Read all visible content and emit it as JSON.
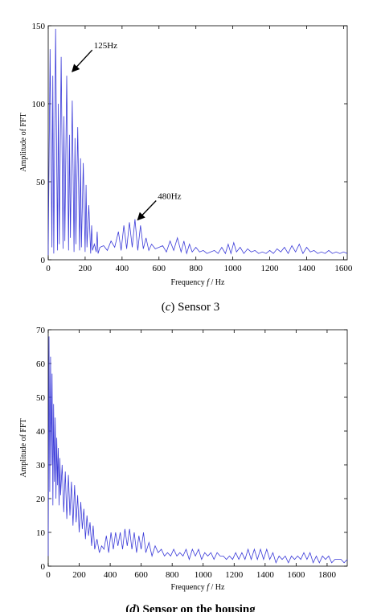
{
  "chart_data": [
    {
      "type": "line",
      "xlabel_prefix": "Frequency ",
      "xlabel_var": "f",
      "xlabel_suffix": " / Hz",
      "ylabel": "Amplitude of FFT",
      "xlim": [
        0,
        1620
      ],
      "ylim": [
        0,
        150
      ],
      "xticks": [
        0,
        200,
        400,
        600,
        800,
        1000,
        1200,
        1400,
        1600
      ],
      "yticks": [
        0,
        50,
        100,
        150
      ],
      "grid": false,
      "line_color": "#3b3bd9",
      "annotations": [
        {
          "text": "125Hz",
          "x": 125,
          "y": 120
        },
        {
          "text": "480Hz",
          "x": 480,
          "y": 25
        }
      ],
      "caption_label": "c",
      "caption_text": "Sensor 3",
      "series": [
        {
          "x": [
            0,
            10,
            20,
            25,
            30,
            40,
            50,
            55,
            60,
            70,
            80,
            85,
            90,
            100,
            110,
            115,
            120,
            130,
            140,
            145,
            150,
            160,
            170,
            175,
            180,
            190,
            200,
            205,
            210,
            220,
            230,
            235,
            240,
            250,
            260,
            265,
            270,
            280,
            300,
            320,
            340,
            360,
            380,
            395,
            410,
            425,
            440,
            455,
            470,
            485,
            500,
            515,
            530,
            545,
            560,
            580,
            600,
            620,
            640,
            660,
            680,
            700,
            720,
            735,
            750,
            765,
            780,
            800,
            820,
            840,
            860,
            880,
            900,
            920,
            940,
            960,
            975,
            990,
            1005,
            1020,
            1040,
            1060,
            1080,
            1100,
            1120,
            1140,
            1160,
            1180,
            1200,
            1220,
            1240,
            1260,
            1280,
            1300,
            1320,
            1340,
            1360,
            1380,
            1400,
            1420,
            1440,
            1460,
            1480,
            1500,
            1520,
            1540,
            1560,
            1580,
            1600,
            1620
          ],
          "y": [
            3,
            135,
            8,
            118,
            4,
            148,
            6,
            100,
            10,
            130,
            7,
            92,
            12,
            118,
            6,
            80,
            14,
            102,
            5,
            78,
            10,
            85,
            6,
            65,
            8,
            62,
            5,
            48,
            8,
            35,
            4,
            22,
            6,
            10,
            5,
            18,
            4,
            8,
            9,
            6,
            12,
            8,
            18,
            6,
            22,
            7,
            24,
            8,
            26,
            6,
            22,
            7,
            14,
            6,
            10,
            7,
            8,
            9,
            5,
            12,
            6,
            14,
            5,
            12,
            4,
            10,
            5,
            8,
            5,
            6,
            4,
            5,
            6,
            4,
            8,
            4,
            10,
            4,
            11,
            5,
            8,
            4,
            7,
            5,
            6,
            4,
            5,
            4,
            6,
            4,
            7,
            5,
            8,
            4,
            9,
            5,
            10,
            4,
            8,
            5,
            6,
            4,
            5,
            4,
            6,
            4,
            5,
            4,
            5,
            4
          ]
        }
      ]
    },
    {
      "type": "line",
      "xlabel_prefix": "Frequency ",
      "xlabel_var": "f",
      "xlabel_suffix": " / Hz",
      "ylabel": "Amplitude of FFT",
      "xlim": [
        0,
        1930
      ],
      "ylim": [
        0,
        70
      ],
      "xticks": [
        0,
        200,
        400,
        600,
        800,
        1000,
        1200,
        1400,
        1600,
        1800
      ],
      "yticks": [
        0,
        10,
        20,
        30,
        40,
        50,
        60,
        70
      ],
      "grid": false,
      "line_color": "#3b3bd9",
      "caption_label": "d",
      "caption_text": "Sensor on the housing",
      "series": [
        {
          "x": [
            0,
            5,
            10,
            15,
            20,
            25,
            30,
            35,
            40,
            45,
            50,
            55,
            60,
            65,
            70,
            75,
            80,
            90,
            100,
            110,
            120,
            130,
            140,
            150,
            160,
            170,
            180,
            190,
            200,
            210,
            220,
            230,
            240,
            250,
            260,
            270,
            280,
            290,
            300,
            315,
            330,
            345,
            360,
            375,
            390,
            405,
            420,
            435,
            450,
            465,
            480,
            495,
            510,
            525,
            540,
            555,
            570,
            585,
            600,
            615,
            630,
            650,
            670,
            690,
            710,
            730,
            750,
            770,
            790,
            810,
            830,
            850,
            870,
            890,
            910,
            930,
            950,
            970,
            990,
            1010,
            1030,
            1050,
            1070,
            1090,
            1110,
            1130,
            1150,
            1170,
            1190,
            1210,
            1230,
            1250,
            1270,
            1290,
            1310,
            1330,
            1350,
            1370,
            1390,
            1410,
            1430,
            1450,
            1470,
            1490,
            1510,
            1530,
            1550,
            1570,
            1590,
            1610,
            1630,
            1650,
            1670,
            1690,
            1710,
            1730,
            1750,
            1770,
            1790,
            1810,
            1830,
            1850,
            1870,
            1890,
            1910,
            1930
          ],
          "y": [
            3,
            68,
            22,
            62,
            30,
            57,
            18,
            48,
            25,
            44,
            20,
            38,
            24,
            35,
            18,
            32,
            21,
            30,
            16,
            28,
            14,
            27,
            15,
            25,
            12,
            24,
            13,
            21,
            10,
            19,
            11,
            17,
            8,
            15,
            9,
            13,
            6,
            12,
            5,
            8,
            4,
            6,
            5,
            9,
            4,
            10,
            5,
            10,
            6,
            10,
            5,
            11,
            6,
            11,
            5,
            10,
            4,
            9,
            5,
            10,
            4,
            7,
            3,
            6,
            4,
            5,
            3,
            4,
            3,
            5,
            3,
            4,
            3,
            5,
            2,
            5,
            3,
            5,
            2,
            4,
            3,
            4,
            2,
            4,
            3,
            3,
            2,
            3,
            2,
            4,
            2,
            4,
            2,
            5,
            2,
            5,
            2,
            5,
            2,
            5,
            2,
            4,
            1,
            3,
            2,
            3,
            1,
            3,
            2,
            3,
            2,
            4,
            2,
            4,
            1,
            3,
            1,
            3,
            2,
            3,
            1,
            2,
            2,
            2,
            1,
            2
          ]
        }
      ]
    }
  ]
}
